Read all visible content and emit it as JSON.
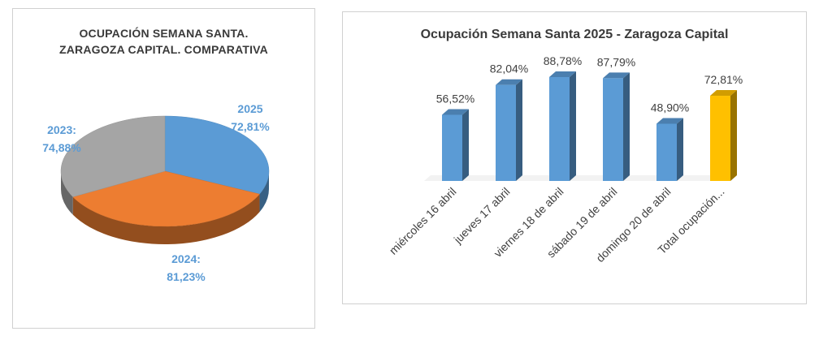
{
  "chart_data": [
    {
      "type": "pie",
      "title_lines": [
        "OCUPACIÓN SEMANA SANTA.",
        "ZARAGOZA CAPITAL. COMPARATIVA"
      ],
      "slices": [
        {
          "label": "2025",
          "value_label": "72,81%",
          "value": 72.81,
          "color": "#5b9bd5"
        },
        {
          "label": "2024:",
          "value_label": "81,23%",
          "value": 81.23,
          "color": "#ed7d31"
        },
        {
          "label": "2023:",
          "value_label": "74,88%",
          "value": 74.88,
          "color": "#a5a5a5"
        }
      ],
      "label_color": "#5b9bd5",
      "style": "3d"
    },
    {
      "type": "bar",
      "title": "Ocupación Semana Santa 2025 - Zaragoza Capital",
      "categories": [
        "miércoles 16 abril",
        "jueves 17 abril",
        "viernes 18 de abril",
        "sábado 19 de abril",
        "domingo 20 de abril",
        "Total ocupación..."
      ],
      "values": [
        56.52,
        82.04,
        88.78,
        87.79,
        48.9,
        72.81
      ],
      "value_labels": [
        "56,52%",
        "82,04%",
        "88,78%",
        "87,79%",
        "48,90%",
        "72,81%"
      ],
      "colors": [
        "#5b9bd5",
        "#5b9bd5",
        "#5b9bd5",
        "#5b9bd5",
        "#5b9bd5",
        "#ffc000"
      ],
      "style": "3d",
      "grid": false
    }
  ]
}
